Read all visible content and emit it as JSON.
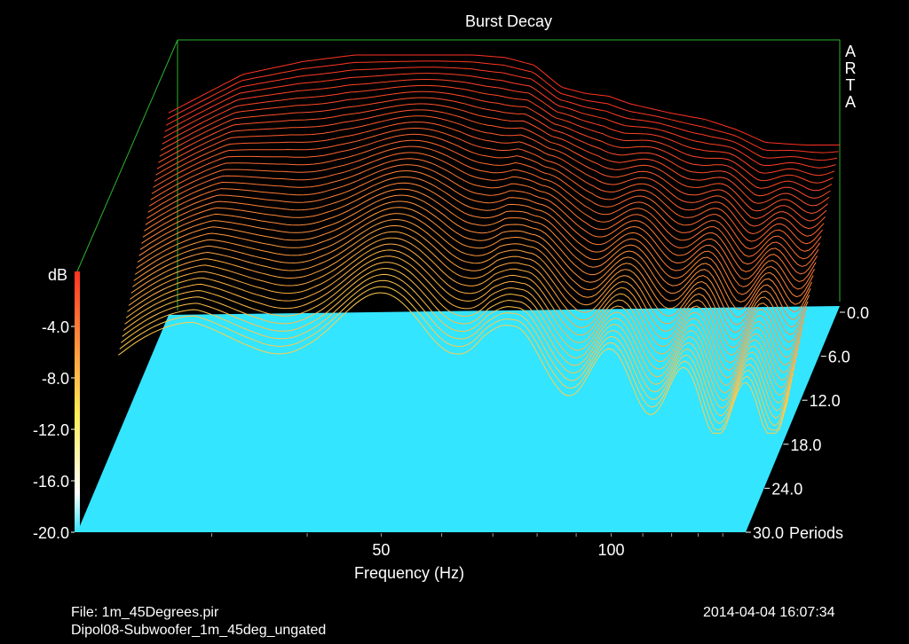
{
  "chart_data": {
    "type": "waterfall",
    "title": "Burst Decay",
    "brand": "ARTA",
    "xlabel": "Frequency (Hz)",
    "x_ticks": [
      "50",
      "100"
    ],
    "x_tick_values": [
      50,
      100
    ],
    "xlim": [
      20,
      150
    ],
    "x_scale": "log",
    "z_label": "dB",
    "z_ticks": [
      "-4.0",
      "-8.0",
      "-12.0",
      "-16.0",
      "-20.0"
    ],
    "zlim": [
      -20,
      0
    ],
    "period_ticks": [
      "0.0",
      "6.0",
      "12.0",
      "18.0",
      "24.0",
      "30.0"
    ],
    "period_unit": "Periods",
    "period_range": [
      0,
      30
    ],
    "floor_color": "#33e5ff",
    "colormap": [
      "#33e5ff",
      "#ffffff",
      "#ffee55",
      "#ff3322"
    ],
    "grid": false,
    "series_note": "",
    "level_at_period_0": {
      "frequency_hz": [
        20,
        25,
        30,
        35,
        40,
        45,
        50,
        55,
        60,
        65,
        70,
        75,
        80,
        90,
        100,
        110,
        120,
        135,
        150
      ],
      "db": [
        -4.5,
        -1.5,
        -0.5,
        0.0,
        0.0,
        0.0,
        0.0,
        -0.2,
        -0.8,
        -2.5,
        -3.0,
        -3.2,
        -3.8,
        -4.5,
        -5.0,
        -5.8,
        -6.8,
        -7.0,
        -7.0
      ]
    }
  },
  "footer": {
    "file": "File: 1m_45Degrees.pir",
    "name": "Dipol08-Subwoofer_1m_45deg_ungated",
    "datetime": "2014-04-04   16:07:34"
  }
}
